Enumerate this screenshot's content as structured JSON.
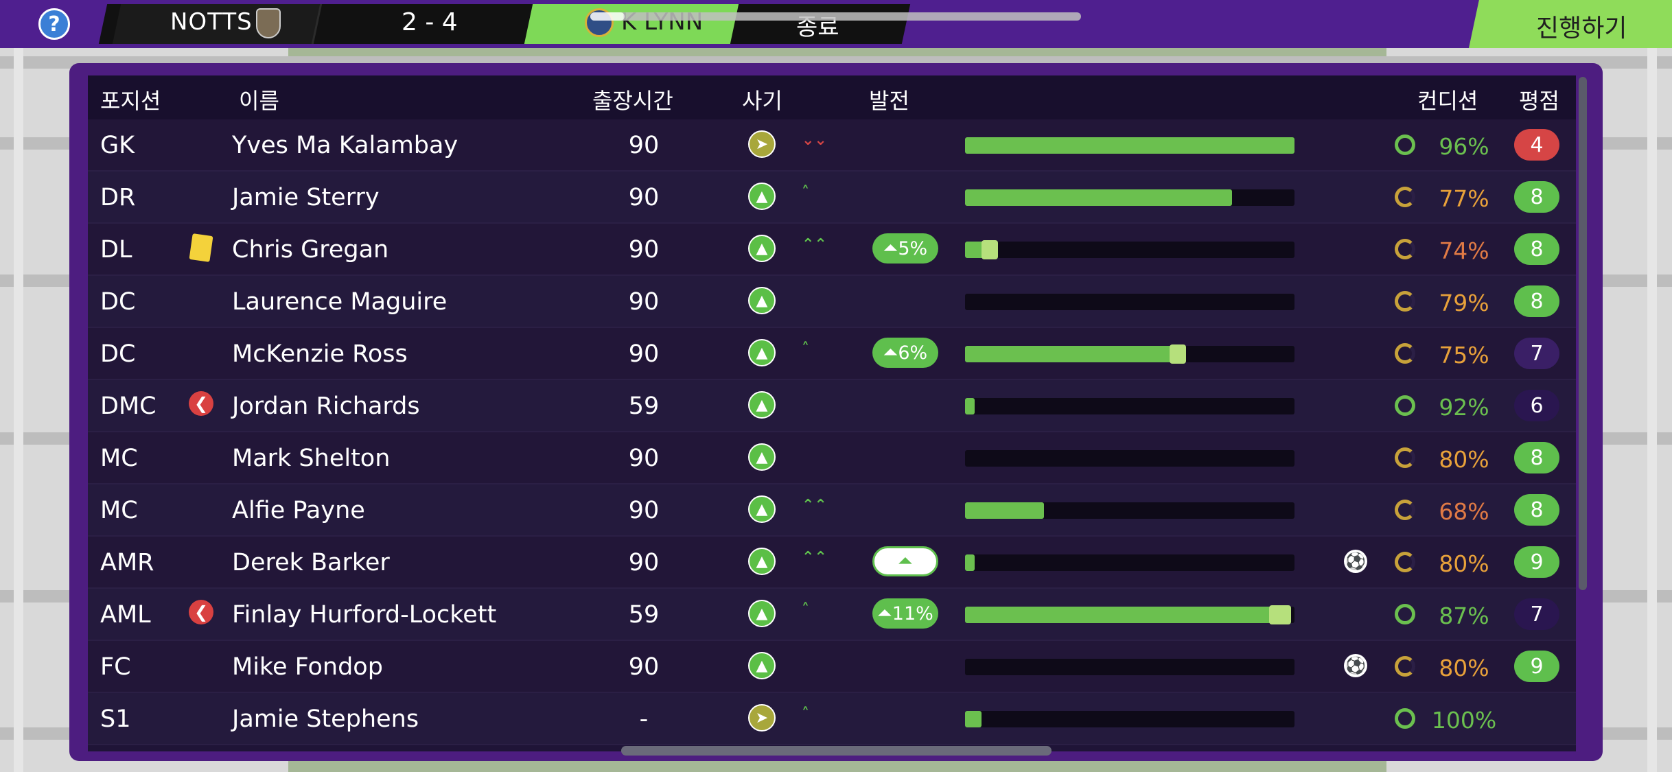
{
  "top_bar": {
    "help_label": "?",
    "home_team": "NOTTS",
    "score": "2 - 4",
    "away_team": "K LYNN",
    "status": "종료",
    "match_progress": 0.07,
    "continue_label": "진행하기"
  },
  "table": {
    "headers": {
      "position": "포지션",
      "name": "이름",
      "minutes": "출장시간",
      "morale": "사기",
      "development": "발전",
      "condition": "컨디션",
      "rating": "평점"
    },
    "rows": [
      {
        "pos": "GK",
        "name": "Yves Ma Kalambay",
        "mins": "90",
        "morale": "sideways",
        "trend": "down2",
        "dev": "",
        "dev_style": "",
        "bar": 1.0,
        "gain": 0,
        "goal": false,
        "cond": "96%",
        "cond_color": "#6bc04f",
        "cond_fraction": 0.96,
        "rating": "4",
        "rating_color": "#d64545",
        "card": "",
        "sub": false
      },
      {
        "pos": "DR",
        "name": "Jamie Sterry",
        "mins": "90",
        "morale": "up",
        "trend": "up1",
        "dev": "",
        "dev_style": "",
        "bar": 0.81,
        "gain": 0,
        "goal": false,
        "cond": "77%",
        "cond_color": "#e8a13a",
        "cond_fraction": 0.77,
        "rating": "8",
        "rating_color": "#5fbf4d",
        "card": "",
        "sub": false
      },
      {
        "pos": "DL",
        "name": "Chris Gregan",
        "mins": "90",
        "morale": "up",
        "trend": "up2",
        "dev": "5%",
        "dev_style": "solid",
        "bar": 0.1,
        "gain": 0.05,
        "goal": false,
        "cond": "74%",
        "cond_color": "#e07a45",
        "cond_fraction": 0.74,
        "rating": "8",
        "rating_color": "#5fbf4d",
        "card": "yellow",
        "sub": false
      },
      {
        "pos": "DC",
        "name": "Laurence Maguire",
        "mins": "90",
        "morale": "up",
        "trend": "",
        "dev": "",
        "dev_style": "",
        "bar": 0,
        "gain": 0,
        "goal": false,
        "cond": "79%",
        "cond_color": "#e8a13a",
        "cond_fraction": 0.79,
        "rating": "8",
        "rating_color": "#5fbf4d",
        "card": "",
        "sub": false
      },
      {
        "pos": "DC",
        "name": "McKenzie Ross",
        "mins": "90",
        "morale": "up",
        "trend": "up0",
        "dev": "6%",
        "dev_style": "solid",
        "bar": 0.67,
        "gain": 0.06,
        "goal": false,
        "cond": "75%",
        "cond_color": "#e8a13a",
        "cond_fraction": 0.75,
        "rating": "7",
        "rating_color": "#3a1f66",
        "card": "",
        "sub": false
      },
      {
        "pos": "DMC",
        "name": "Jordan Richards",
        "mins": "59",
        "morale": "up",
        "trend": "",
        "dev": "",
        "dev_style": "",
        "bar": 0.03,
        "gain": 0,
        "goal": false,
        "cond": "92%",
        "cond_color": "#6bc04f",
        "cond_fraction": 0.92,
        "rating": "6",
        "rating_color": "#2a1650",
        "card": "",
        "sub": true
      },
      {
        "pos": "MC",
        "name": "Mark Shelton",
        "mins": "90",
        "morale": "up",
        "trend": "",
        "dev": "",
        "dev_style": "",
        "bar": 0,
        "gain": 0,
        "goal": false,
        "cond": "80%",
        "cond_color": "#e8a13a",
        "cond_fraction": 0.8,
        "rating": "8",
        "rating_color": "#5fbf4d",
        "card": "",
        "sub": false
      },
      {
        "pos": "MC",
        "name": "Alfie Payne",
        "mins": "90",
        "morale": "up",
        "trend": "up2",
        "dev": "",
        "dev_style": "",
        "bar": 0.24,
        "gain": 0,
        "goal": false,
        "cond": "68%",
        "cond_color": "#e07a45",
        "cond_fraction": 0.68,
        "rating": "8",
        "rating_color": "#5fbf4d",
        "card": "",
        "sub": false
      },
      {
        "pos": "AMR",
        "name": "Derek Barker",
        "mins": "90",
        "morale": "up",
        "trend": "up2",
        "dev": "",
        "dev_style": "outline",
        "bar": 0.03,
        "gain": 0,
        "goal": true,
        "cond": "80%",
        "cond_color": "#e8a13a",
        "cond_fraction": 0.8,
        "rating": "9",
        "rating_color": "#5fbf4d",
        "card": "",
        "sub": false
      },
      {
        "pos": "AML",
        "name": "Finlay Hurford-Lockett",
        "mins": "59",
        "morale": "up",
        "trend": "up1",
        "dev": "11%",
        "dev_style": "solid",
        "bar": 0.99,
        "gain": 0.11,
        "goal": false,
        "cond": "87%",
        "cond_color": "#6bc04f",
        "cond_fraction": 0.87,
        "rating": "7",
        "rating_color": "#2a1650",
        "card": "",
        "sub": true
      },
      {
        "pos": "FC",
        "name": "Mike Fondop",
        "mins": "90",
        "morale": "up",
        "trend": "",
        "dev": "",
        "dev_style": "",
        "bar": 0,
        "gain": 0,
        "goal": true,
        "cond": "80%",
        "cond_color": "#e8a13a",
        "cond_fraction": 0.8,
        "rating": "9",
        "rating_color": "#5fbf4d",
        "card": "",
        "sub": false
      },
      {
        "pos": "S1",
        "name": "Jamie Stephens",
        "mins": "-",
        "morale": "sideways",
        "trend": "up1",
        "dev": "",
        "dev_style": "",
        "bar": 0.05,
        "gain": 0,
        "goal": false,
        "cond": "100%",
        "cond_color": "#6bc04f",
        "cond_fraction": 1.0,
        "rating": "",
        "rating_color": "",
        "card": "",
        "sub": false
      }
    ]
  },
  "icons": {
    "help": "help-icon",
    "morale_up": "morale-up-icon",
    "morale_sideways": "morale-sideways-icon",
    "goal": "football-icon",
    "yellow_card": "yellow-card-icon",
    "substitution": "sub-off-icon",
    "development": "development-chevron-icon"
  }
}
